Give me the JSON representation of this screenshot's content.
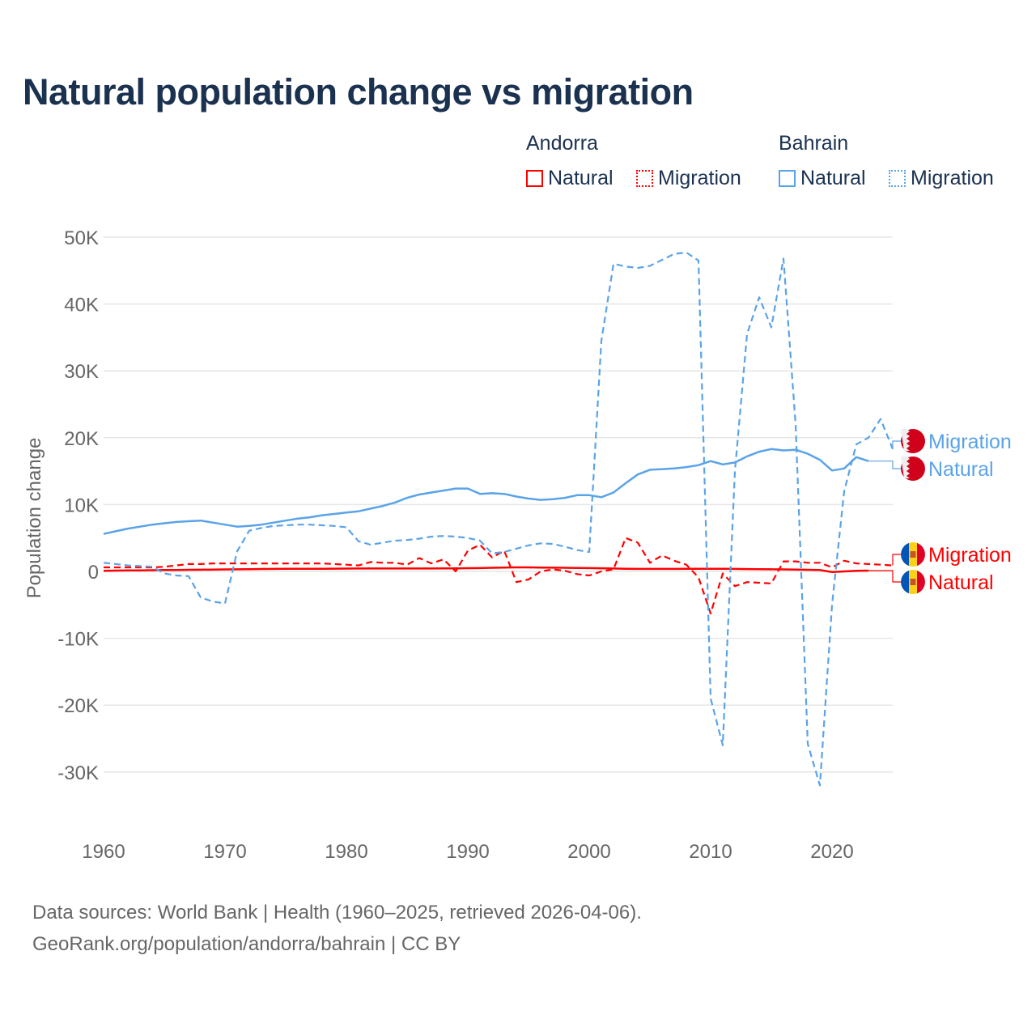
{
  "chart_data": {
    "type": "line",
    "title": "Natural population change vs migration",
    "ylabel": "Population change",
    "xlabel": "",
    "xlim": [
      1960,
      2025
    ],
    "ylim": [
      -35000,
      50000
    ],
    "xticks": [
      1960,
      1970,
      1980,
      1990,
      2000,
      2010,
      2020
    ],
    "xtick_labels": [
      "1960",
      "1970",
      "1980",
      "1990",
      "2000",
      "2010",
      "2020"
    ],
    "yticks": [
      50000,
      40000,
      30000,
      20000,
      10000,
      0,
      -10000,
      -20000,
      -30000
    ],
    "ytick_labels": [
      "50K",
      "40K",
      "30K",
      "20K",
      "10K",
      "0",
      "-10K",
      "-20K",
      "-30K"
    ],
    "grid": true,
    "legend": {
      "placement": "top-right",
      "groups": [
        {
          "name": "Andorra",
          "items": [
            "Natural",
            "Migration"
          ]
        },
        {
          "name": "Bahrain",
          "items": [
            "Natural",
            "Migration"
          ]
        }
      ]
    },
    "colors": {
      "Andorra": "#ff0000",
      "Bahrain": "#5aa3e8"
    },
    "series": [
      {
        "name": "Bahrain Natural",
        "country": "Bahrain",
        "kind": "Natural",
        "dash": false,
        "start": 1960,
        "values": [
          5600,
          6000,
          6400,
          6700,
          7000,
          7200,
          7400,
          7500,
          7600,
          7300,
          7000,
          6700,
          6800,
          7000,
          7300,
          7600,
          7900,
          8100,
          8400,
          8600,
          8800,
          9000,
          9400,
          9800,
          10300,
          11000,
          11500,
          11800,
          12100,
          12400,
          12400,
          11600,
          11700,
          11600,
          11200,
          10900,
          10700,
          10800,
          11000,
          11400,
          11400,
          11100,
          11800,
          13200,
          14500,
          15200,
          15300,
          15400,
          15600,
          15900,
          16500,
          16000,
          16300,
          17200,
          17900,
          18300,
          18100,
          18200,
          17600,
          16700,
          15100,
          15400,
          17100,
          16500
        ]
      },
      {
        "name": "Bahrain Migration",
        "country": "Bahrain",
        "kind": "Migration",
        "dash": true,
        "start": 1960,
        "values": [
          1300,
          1100,
          900,
          800,
          700,
          -300,
          -600,
          -700,
          -3900,
          -4500,
          -4800,
          3000,
          6100,
          6500,
          6800,
          6900,
          7000,
          7000,
          6900,
          6800,
          6600,
          4500,
          4000,
          4300,
          4600,
          4700,
          4900,
          5200,
          5300,
          5200,
          5000,
          4600,
          2700,
          2900,
          3400,
          3900,
          4200,
          4100,
          3700,
          3200,
          2900,
          34500,
          46000,
          45600,
          45400,
          45700,
          46600,
          47500,
          47700,
          46500,
          -19000,
          -26000,
          15000,
          35500,
          41000,
          36500,
          46800,
          22000,
          -25800,
          -32000,
          -5000,
          12000,
          19000,
          20000,
          22800,
          18300
        ]
      },
      {
        "name": "Andorra Natural",
        "country": "Andorra",
        "kind": "Natural",
        "dash": false,
        "start": 1960,
        "values": [
          100,
          120,
          140,
          160,
          180,
          200,
          220,
          240,
          260,
          280,
          300,
          320,
          340,
          360,
          380,
          390,
          400,
          400,
          400,
          410,
          420,
          430,
          440,
          440,
          440,
          440,
          440,
          440,
          450,
          460,
          480,
          500,
          550,
          580,
          600,
          600,
          580,
          560,
          540,
          520,
          500,
          470,
          440,
          400,
          380,
          370,
          380,
          380,
          390,
          400,
          400,
          390,
          370,
          350,
          330,
          310,
          300,
          280,
          240,
          200,
          -100,
          0,
          100,
          120
        ]
      },
      {
        "name": "Andorra Migration",
        "country": "Andorra",
        "kind": "Migration",
        "dash": true,
        "start": 1960,
        "values": [
          600,
          600,
          600,
          600,
          600,
          700,
          900,
          1100,
          1100,
          1200,
          1200,
          1200,
          1200,
          1200,
          1200,
          1200,
          1200,
          1200,
          1200,
          1100,
          1000,
          900,
          1400,
          1300,
          1300,
          1000,
          2000,
          1200,
          1800,
          0,
          3100,
          4000,
          2100,
          3100,
          -1600,
          -1200,
          0,
          300,
          100,
          -400,
          -600,
          0,
          300,
          5000,
          4300,
          1300,
          2400,
          1600,
          1000,
          -900,
          -6300,
          -300,
          -2200,
          -1600,
          -1700,
          -1800,
          1500,
          1500,
          1300,
          1300,
          600,
          1600,
          1200,
          1100,
          1000,
          900
        ]
      }
    ],
    "end_labels": [
      {
        "series": "Bahrain Migration",
        "text": "Migration"
      },
      {
        "series": "Bahrain Natural",
        "text": "Natural"
      },
      {
        "series": "Andorra Migration",
        "text": "Migration"
      },
      {
        "series": "Andorra Natural",
        "text": "Natural"
      }
    ],
    "footer": [
      "Data sources: World Bank | Health (1960–2025, retrieved 2026-04-06).",
      "GeoRank.org/population/andorra/bahrain | CC BY"
    ]
  }
}
